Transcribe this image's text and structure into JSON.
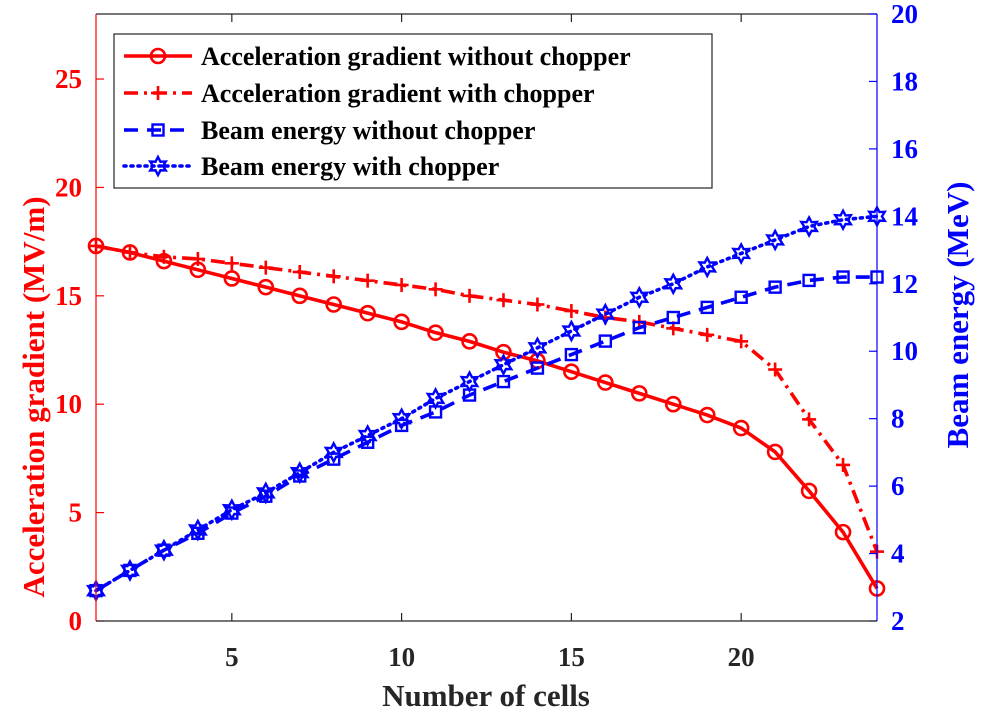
{
  "chart_data": {
    "type": "line",
    "xlabel": "Number of cells",
    "ylabel_left": "Acceleration gradient (MV/m)",
    "ylabel_right": "Beam energy (MeV)",
    "xlim": [
      1,
      24
    ],
    "ylim_left": [
      0,
      28
    ],
    "ylim_right": [
      2,
      20
    ],
    "x_ticks": [
      5,
      10,
      15,
      20
    ],
    "y_ticks_left": [
      0,
      5,
      10,
      15,
      20,
      25
    ],
    "y_ticks_right": [
      2,
      4,
      6,
      8,
      10,
      12,
      14,
      16,
      18,
      20
    ],
    "x": [
      1,
      2,
      3,
      4,
      5,
      6,
      7,
      8,
      9,
      10,
      11,
      12,
      13,
      14,
      15,
      16,
      17,
      18,
      19,
      20,
      21,
      22,
      23,
      24
    ],
    "series": [
      {
        "name": "Acceleration gradient without chopper",
        "axis": "left",
        "color": "#ff0000",
        "line": "solid",
        "marker": "circle",
        "values": [
          17.3,
          17.0,
          16.6,
          16.2,
          15.8,
          15.4,
          15.0,
          14.6,
          14.2,
          13.8,
          13.3,
          12.9,
          12.4,
          12.0,
          11.5,
          11.0,
          10.5,
          10.0,
          9.5,
          8.9,
          7.8,
          6.0,
          4.1,
          1.5
        ]
      },
      {
        "name": "Acceleration gradient with chopper",
        "axis": "left",
        "color": "#ff0000",
        "line": "dashdot",
        "marker": "plus",
        "values": [
          17.3,
          17.0,
          16.8,
          16.7,
          16.5,
          16.3,
          16.1,
          15.9,
          15.7,
          15.5,
          15.3,
          15.0,
          14.8,
          14.6,
          14.3,
          14.0,
          13.8,
          13.5,
          13.2,
          12.9,
          11.6,
          9.3,
          7.2,
          3.2
        ]
      },
      {
        "name": "Beam energy without chopper",
        "axis": "right",
        "color": "#0000ff",
        "line": "dashed",
        "marker": "square",
        "values": [
          2.9,
          3.5,
          4.1,
          4.6,
          5.2,
          5.7,
          6.3,
          6.8,
          7.3,
          7.8,
          8.2,
          8.7,
          9.1,
          9.5,
          9.9,
          10.3,
          10.7,
          11.0,
          11.3,
          11.6,
          11.9,
          12.1,
          12.2,
          12.2
        ]
      },
      {
        "name": "Beam energy with chopper",
        "axis": "right",
        "color": "#0000ff",
        "line": "dotted",
        "marker": "hexagram",
        "values": [
          2.9,
          3.5,
          4.1,
          4.7,
          5.3,
          5.8,
          6.4,
          7.0,
          7.5,
          8.0,
          8.6,
          9.1,
          9.6,
          10.1,
          10.6,
          11.1,
          11.6,
          12.0,
          12.5,
          12.9,
          13.3,
          13.7,
          13.9,
          14.0
        ]
      }
    ],
    "legend_position": "top-left"
  }
}
